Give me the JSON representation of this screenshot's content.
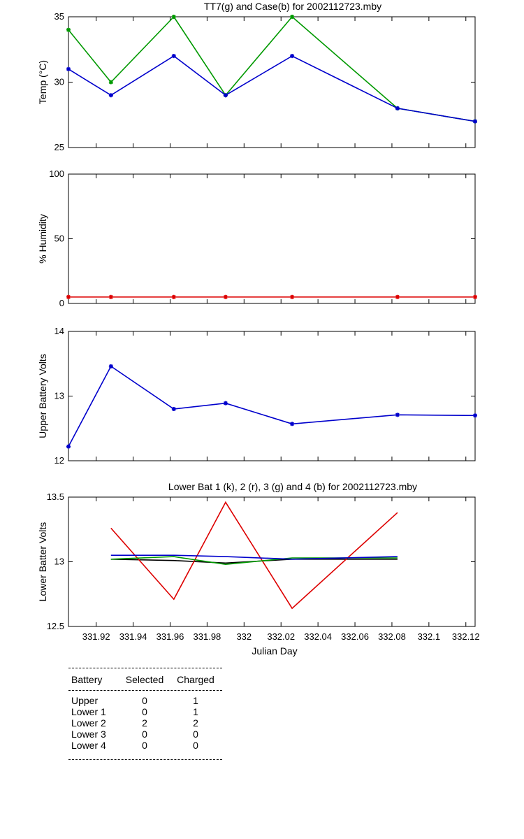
{
  "chart_data": [
    {
      "type": "line",
      "title": "TT7(g) and Case(b) for 2002112723.mby",
      "xlabel": "",
      "ylabel": "Temp  (°C)",
      "xlim": [
        331.905,
        332.125
      ],
      "ylim": [
        25,
        35
      ],
      "yticks": [
        25,
        30,
        35
      ],
      "x_tick_labels_shown": false,
      "series": [
        {
          "name": "",
          "color": "#009900",
          "marker": "*",
          "x": [
            331.905,
            331.928,
            331.962,
            331.99,
            332.026,
            332.083,
            332.125
          ],
          "values": [
            34,
            30,
            35,
            29,
            35,
            28,
            27
          ]
        },
        {
          "name": "",
          "color": "#0000cc",
          "marker": "*",
          "x": [
            331.905,
            331.928,
            331.962,
            331.99,
            332.026,
            332.083,
            332.125
          ],
          "values": [
            31,
            29,
            32,
            29,
            32,
            28,
            27
          ]
        }
      ]
    },
    {
      "type": "line",
      "title": "",
      "xlabel": "",
      "ylabel": "% Humidity",
      "xlim": [
        331.905,
        332.125
      ],
      "ylim": [
        0,
        100
      ],
      "yticks": [
        0,
        50,
        100
      ],
      "x_tick_labels_shown": false,
      "series": [
        {
          "name": "",
          "color": "#dd0000",
          "marker": "*",
          "x": [
            331.905,
            331.928,
            331.962,
            331.99,
            332.026,
            332.083,
            332.125
          ],
          "values": [
            5,
            5,
            5,
            5,
            5,
            5,
            5
          ]
        }
      ]
    },
    {
      "type": "line",
      "title": "",
      "xlabel": "",
      "ylabel": "Upper Battery Volts",
      "xlim": [
        331.905,
        332.125
      ],
      "ylim": [
        12,
        14
      ],
      "yticks": [
        12,
        13,
        14
      ],
      "x_tick_labels_shown": false,
      "series": [
        {
          "name": "",
          "color": "#0000cc",
          "marker": "*",
          "x": [
            331.905,
            331.928,
            331.962,
            331.99,
            332.026,
            332.083,
            332.125
          ],
          "values": [
            12.22,
            13.46,
            12.8,
            12.89,
            12.57,
            12.71,
            12.7
          ]
        }
      ]
    },
    {
      "type": "line",
      "title": "Lower Bat 1 (k), 2 (r), 3 (g) and 4 (b) for 2002112723.mby",
      "xlabel": "Julian Day",
      "ylabel": "Lower Batter Volts",
      "xlim": [
        331.905,
        332.125
      ],
      "ylim": [
        12.5,
        13.5
      ],
      "yticks": [
        12.5,
        13,
        13.5
      ],
      "xticks": [
        331.92,
        331.94,
        331.96,
        331.98,
        332,
        332.02,
        332.04,
        332.06,
        332.08,
        332.1,
        332.12
      ],
      "xtick_labels": [
        "331.92",
        "331.94",
        "331.96",
        "331.98",
        "332",
        "332.02",
        "332.04",
        "332.06",
        "332.08",
        "332.1",
        "332.12"
      ],
      "x_tick_labels_shown": true,
      "series": [
        {
          "name": "",
          "color": "#000000",
          "marker": "",
          "x": [
            331.928,
            331.962,
            331.99,
            332.026,
            332.083
          ],
          "values": [
            13.02,
            13.01,
            12.99,
            13.02,
            13.02
          ]
        },
        {
          "name": "",
          "color": "#dd0000",
          "marker": "",
          "x": [
            331.928,
            331.962,
            331.99,
            332.026,
            332.083
          ],
          "values": [
            13.26,
            12.71,
            13.46,
            12.64,
            13.38
          ]
        },
        {
          "name": "",
          "color": "#009900",
          "marker": "",
          "x": [
            331.928,
            331.962,
            331.99,
            332.026,
            332.083
          ],
          "values": [
            13.02,
            13.04,
            12.98,
            13.03,
            13.03
          ]
        },
        {
          "name": "",
          "color": "#0000cc",
          "marker": "",
          "x": [
            331.928,
            331.962,
            331.99,
            332.026,
            332.083
          ],
          "values": [
            13.05,
            13.05,
            13.04,
            13.02,
            13.04
          ]
        }
      ]
    }
  ],
  "battery_table": {
    "headers": [
      "Battery",
      "Selected",
      "Charged"
    ],
    "rows": [
      [
        "Upper",
        "0",
        "1"
      ],
      [
        "Lower 1",
        "0",
        "1"
      ],
      [
        "Lower 2",
        "2",
        "2"
      ],
      [
        "Lower 3",
        "0",
        "0"
      ],
      [
        "Lower 4",
        "0",
        "0"
      ]
    ]
  }
}
